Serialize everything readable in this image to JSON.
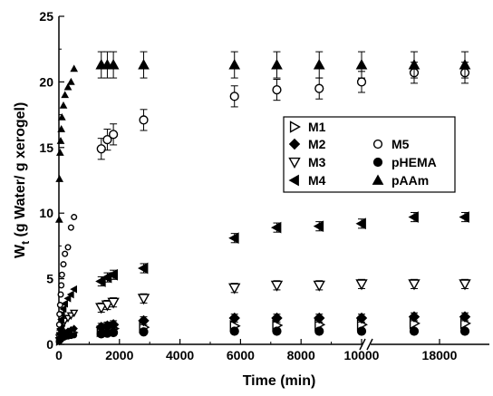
{
  "chart_data": {
    "type": "scatter",
    "xlabel": "Time  (min)",
    "ylabel_main": "W",
    "ylabel_sub": "t",
    "ylabel_rest": " (g Water/ g xerogel)",
    "ylim": [
      0,
      25
    ],
    "yticks": [
      0,
      5,
      10,
      15,
      20,
      25
    ],
    "xticks": [
      {
        "t": 0,
        "label": "0"
      },
      {
        "t": 2000,
        "label": "2000"
      },
      {
        "t": 4000,
        "label": "4000"
      },
      {
        "t": 6000,
        "label": "6000"
      },
      {
        "t": 8000,
        "label": "8000"
      },
      {
        "t": 10000,
        "label": "10000"
      },
      {
        "t": 18000,
        "label": "18000"
      }
    ],
    "axis_break_note": "x axis broken between 10000 and ~16000 min",
    "legend_position": "right-middle",
    "series": [
      {
        "name": "M1",
        "marker": "tri-right-open",
        "points": [
          [
            10,
            0.2
          ],
          [
            20,
            0.25
          ],
          [
            40,
            0.3
          ],
          [
            60,
            0.35
          ],
          [
            80,
            0.4
          ],
          [
            100,
            0.5
          ],
          [
            150,
            0.6
          ],
          [
            200,
            0.7
          ],
          [
            300,
            0.8
          ],
          [
            400,
            0.85
          ],
          [
            500,
            0.9
          ],
          [
            1400,
            1.0
          ],
          [
            1600,
            1.1
          ],
          [
            1800,
            1.2
          ],
          [
            2800,
            1.3
          ],
          [
            5800,
            1.4
          ],
          [
            7200,
            1.45
          ],
          [
            8600,
            1.5
          ],
          [
            10000,
            1.5
          ],
          [
            17200,
            1.6
          ],
          [
            18600,
            1.6
          ]
        ]
      },
      {
        "name": "M2",
        "marker": "diamond-filled",
        "points": [
          [
            10,
            0.2
          ],
          [
            20,
            0.3
          ],
          [
            40,
            0.4
          ],
          [
            60,
            0.5
          ],
          [
            80,
            0.6
          ],
          [
            100,
            0.7
          ],
          [
            150,
            0.8
          ],
          [
            200,
            0.9
          ],
          [
            300,
            1.0
          ],
          [
            400,
            1.1
          ],
          [
            500,
            1.2
          ],
          [
            1400,
            1.3
          ],
          [
            1600,
            1.4
          ],
          [
            1800,
            1.5
          ],
          [
            2800,
            1.8
          ],
          [
            5800,
            2.0
          ],
          [
            7200,
            2.0
          ],
          [
            8600,
            2.0
          ],
          [
            10000,
            2.0
          ],
          [
            17200,
            2.1
          ],
          [
            18600,
            2.1
          ]
        ],
        "err": 0.3
      },
      {
        "name": "M3",
        "marker": "tri-down-open",
        "points": [
          [
            10,
            0.3
          ],
          [
            20,
            0.5
          ],
          [
            40,
            0.7
          ],
          [
            60,
            1.0
          ],
          [
            80,
            1.2
          ],
          [
            100,
            1.4
          ],
          [
            150,
            1.6
          ],
          [
            200,
            1.8
          ],
          [
            300,
            2.0
          ],
          [
            400,
            2.2
          ],
          [
            500,
            2.4
          ],
          [
            1400,
            2.8
          ],
          [
            1600,
            3.0
          ],
          [
            1800,
            3.2
          ],
          [
            2800,
            3.5
          ],
          [
            5800,
            4.3
          ],
          [
            7200,
            4.5
          ],
          [
            8600,
            4.5
          ],
          [
            10000,
            4.6
          ],
          [
            17200,
            4.6
          ],
          [
            18600,
            4.6
          ]
        ],
        "err": 0.35
      },
      {
        "name": "M4",
        "marker": "tri-left-filled",
        "points": [
          [
            10,
            0.5
          ],
          [
            20,
            0.8
          ],
          [
            40,
            1.1
          ],
          [
            60,
            1.5
          ],
          [
            80,
            1.9
          ],
          [
            100,
            2.3
          ],
          [
            150,
            2.7
          ],
          [
            200,
            3.1
          ],
          [
            300,
            3.5
          ],
          [
            400,
            3.8
          ],
          [
            500,
            4.2
          ],
          [
            1400,
            4.8
          ],
          [
            1600,
            5.1
          ],
          [
            1800,
            5.3
          ],
          [
            2800,
            5.8
          ],
          [
            5800,
            8.1
          ],
          [
            7200,
            8.9
          ],
          [
            8600,
            9.0
          ],
          [
            10000,
            9.2
          ],
          [
            17200,
            9.7
          ],
          [
            18600,
            9.7
          ]
        ],
        "err": 0.35
      },
      {
        "name": "M5",
        "marker": "circle-open",
        "points": [
          [
            10,
            1.5
          ],
          [
            20,
            2.3
          ],
          [
            40,
            3.0
          ],
          [
            60,
            3.8
          ],
          [
            80,
            4.5
          ],
          [
            100,
            5.3
          ],
          [
            150,
            6.1
          ],
          [
            200,
            6.9
          ],
          [
            300,
            7.4
          ],
          [
            400,
            8.9
          ],
          [
            500,
            9.7
          ],
          [
            1400,
            14.9
          ],
          [
            1600,
            15.6
          ],
          [
            1800,
            16.0
          ],
          [
            2800,
            17.1
          ],
          [
            5800,
            18.9
          ],
          [
            7200,
            19.4
          ],
          [
            8600,
            19.5
          ],
          [
            10000,
            20.0
          ],
          [
            17200,
            20.7
          ],
          [
            18600,
            20.7
          ]
        ],
        "err": 0.8
      },
      {
        "name": "pHEMA",
        "marker": "circle-filled",
        "points": [
          [
            10,
            0.2
          ],
          [
            20,
            0.25
          ],
          [
            40,
            0.3
          ],
          [
            60,
            0.35
          ],
          [
            80,
            0.4
          ],
          [
            100,
            0.45
          ],
          [
            150,
            0.5
          ],
          [
            200,
            0.55
          ],
          [
            300,
            0.6
          ],
          [
            400,
            0.65
          ],
          [
            500,
            0.7
          ],
          [
            1400,
            0.8
          ],
          [
            1600,
            0.85
          ],
          [
            1800,
            0.9
          ],
          [
            2800,
            0.95
          ],
          [
            5800,
            1.0
          ],
          [
            7200,
            1.0
          ],
          [
            8600,
            1.0
          ],
          [
            10000,
            1.0
          ],
          [
            17200,
            1.0
          ],
          [
            18600,
            1.0
          ]
        ]
      },
      {
        "name": "pAAm",
        "marker": "tri-up-filled",
        "points": [
          [
            10,
            9.5
          ],
          [
            20,
            12.6
          ],
          [
            40,
            14.6
          ],
          [
            60,
            15.5
          ],
          [
            80,
            16.4
          ],
          [
            100,
            17.3
          ],
          [
            150,
            18.2
          ],
          [
            200,
            19.0
          ],
          [
            300,
            19.6
          ],
          [
            400,
            20.0
          ],
          [
            500,
            21.0
          ],
          [
            1400,
            21.3
          ],
          [
            1600,
            21.3
          ],
          [
            1800,
            21.3
          ],
          [
            2800,
            21.3
          ],
          [
            5800,
            21.3
          ],
          [
            7200,
            21.3
          ],
          [
            8600,
            21.3
          ],
          [
            10000,
            21.3
          ],
          [
            17200,
            21.3
          ],
          [
            18600,
            21.3
          ]
        ],
        "err": 1.0
      }
    ],
    "legend": [
      {
        "label": "M1",
        "marker": "tri-right-open",
        "col": 0,
        "row": 0
      },
      {
        "label": "M2",
        "marker": "diamond-filled",
        "col": 0,
        "row": 1
      },
      {
        "label": "M3",
        "marker": "tri-down-open",
        "col": 0,
        "row": 2
      },
      {
        "label": "M4",
        "marker": "tri-left-filled",
        "col": 0,
        "row": 3
      },
      {
        "label": "M5",
        "marker": "circle-open",
        "col": 1,
        "row": 1
      },
      {
        "label": "pHEMA",
        "marker": "circle-filled",
        "col": 1,
        "row": 2
      },
      {
        "label": "pAAm",
        "marker": "tri-up-filled",
        "col": 1,
        "row": 3
      }
    ]
  }
}
